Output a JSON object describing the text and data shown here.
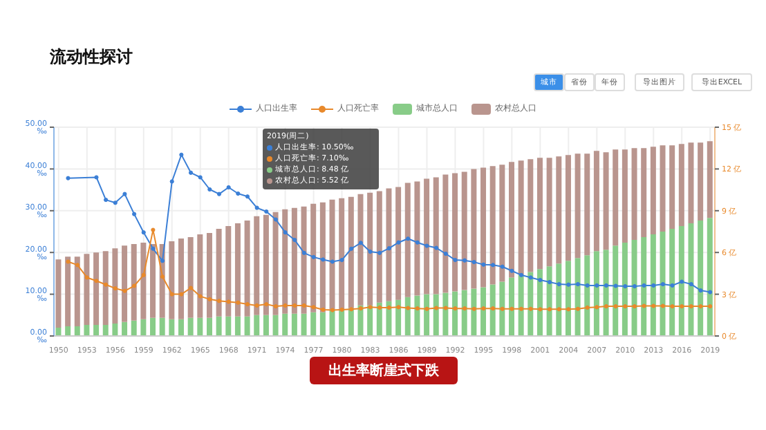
{
  "chart_data": {
    "type": "bar",
    "title": "流动性探讨",
    "stacked": true,
    "legend": "top",
    "grid": true,
    "marker": "circle",
    "categories": [
      "1950",
      null,
      null,
      "1953",
      null,
      null,
      "1956",
      null,
      null,
      "1959",
      null,
      null,
      "1962",
      null,
      null,
      "1965",
      null,
      null,
      "1968",
      null,
      null,
      "1971",
      null,
      null,
      "1974",
      null,
      null,
      "1977",
      null,
      null,
      "1980",
      null,
      null,
      "1983",
      null,
      null,
      "1986",
      null,
      null,
      "1989",
      null,
      null,
      "1992",
      null,
      null,
      "1995",
      null,
      null,
      "1998",
      null,
      null,
      "2001",
      null,
      null,
      "2004",
      null,
      null,
      "2007",
      null,
      null,
      "2010",
      null,
      null,
      "2013",
      null,
      null,
      "2016",
      null,
      null,
      "2019"
    ],
    "ylim": [
      0,
      50
    ],
    "yticks": [
      {
        "value": 0,
        "label": "0.00 ‰"
      },
      {
        "value": 10,
        "label": "10.00 ‰"
      },
      {
        "value": 20,
        "label": "20.00 ‰"
      },
      {
        "value": 30,
        "label": "30.00 ‰"
      },
      {
        "value": 40,
        "label": "40.00 ‰"
      },
      {
        "value": 50,
        "label": "50.00 ‰"
      }
    ],
    "y2lim": [
      0,
      15
    ],
    "y2ticks": [
      {
        "value": 0,
        "label": "0 亿"
      },
      {
        "value": 3,
        "label": "3 亿"
      },
      {
        "value": 6,
        "label": "6 亿"
      },
      {
        "value": 9,
        "label": "9 亿"
      },
      {
        "value": 12,
        "label": "12 亿"
      },
      {
        "value": 15,
        "label": "15 亿"
      }
    ],
    "series": [
      {
        "name": "人口出生率",
        "type": "line",
        "color": "#3b7fd6",
        "values": [
          null,
          37.8,
          null,
          null,
          38.0,
          32.6,
          31.9,
          34.0,
          29.2,
          24.8,
          20.9,
          18.0,
          37.0,
          43.4,
          39.1,
          38.0,
          35.1,
          34.0,
          35.6,
          34.1,
          33.4,
          30.7,
          29.8,
          27.9,
          24.8,
          23.0,
          19.9,
          18.9,
          18.3,
          17.8,
          18.2,
          20.9,
          22.3,
          20.2,
          19.9,
          21.0,
          22.4,
          23.3,
          22.4,
          21.6,
          21.1,
          19.7,
          18.2,
          18.1,
          17.7,
          17.1,
          17.0,
          16.6,
          15.6,
          14.6,
          14.0,
          13.4,
          12.9,
          12.4,
          12.3,
          12.4,
          12.1,
          12.1,
          12.1,
          12.0,
          11.9,
          11.9,
          12.1,
          12.1,
          12.4,
          12.1,
          13.0,
          12.4,
          10.9,
          10.5
        ]
      },
      {
        "name": "人口死亡率",
        "type": "line",
        "color": "#e8892b",
        "values": [
          null,
          17.8,
          17.0,
          14.0,
          13.2,
          12.3,
          11.4,
          10.8,
          12.0,
          14.6,
          25.4,
          14.2,
          10.0,
          10.0,
          11.5,
          9.5,
          8.8,
          8.4,
          8.2,
          8.0,
          7.6,
          7.3,
          7.6,
          7.1,
          7.3,
          7.3,
          7.3,
          6.9,
          6.3,
          6.2,
          6.3,
          6.4,
          6.6,
          6.9,
          6.8,
          6.8,
          6.9,
          6.7,
          6.6,
          6.5,
          6.7,
          6.7,
          6.6,
          6.6,
          6.5,
          6.6,
          6.6,
          6.5,
          6.5,
          6.5,
          6.5,
          6.4,
          6.4,
          6.4,
          6.4,
          6.5,
          6.8,
          6.9,
          7.1,
          7.1,
          7.1,
          7.1,
          7.2,
          7.2,
          7.2,
          7.1,
          7.1,
          7.1,
          7.1,
          7.1
        ]
      },
      {
        "name": "城市总人口",
        "type": "bar",
        "axis": "y2",
        "color": "#88cc88",
        "values": [
          0.6,
          0.7,
          0.7,
          0.8,
          0.8,
          0.8,
          0.9,
          1.0,
          1.1,
          1.2,
          1.3,
          1.3,
          1.2,
          1.2,
          1.3,
          1.3,
          1.3,
          1.4,
          1.4,
          1.4,
          1.4,
          1.5,
          1.5,
          1.5,
          1.6,
          1.6,
          1.6,
          1.7,
          1.7,
          1.9,
          1.9,
          2.0,
          2.2,
          2.2,
          2.4,
          2.5,
          2.6,
          2.8,
          2.9,
          3.0,
          3.0,
          3.1,
          3.2,
          3.3,
          3.4,
          3.5,
          3.7,
          3.9,
          4.2,
          4.4,
          4.6,
          4.8,
          5.0,
          5.2,
          5.4,
          5.6,
          5.8,
          6.1,
          6.2,
          6.5,
          6.7,
          6.9,
          7.1,
          7.3,
          7.5,
          7.7,
          7.9,
          8.1,
          8.3,
          8.48
        ]
      },
      {
        "name": "农村总人口",
        "type": "bar",
        "axis": "y2",
        "color": "#b9958e",
        "values": [
          4.9,
          5.0,
          5.0,
          5.1,
          5.2,
          5.3,
          5.4,
          5.5,
          5.5,
          5.5,
          5.3,
          5.3,
          5.6,
          5.8,
          5.8,
          6.0,
          6.1,
          6.3,
          6.5,
          6.7,
          6.9,
          7.1,
          7.2,
          7.4,
          7.5,
          7.6,
          7.7,
          7.8,
          7.9,
          7.9,
          8.0,
          8.0,
          8.0,
          8.1,
          8.0,
          8.1,
          8.1,
          8.2,
          8.2,
          8.3,
          8.4,
          8.5,
          8.5,
          8.5,
          8.6,
          8.6,
          8.5,
          8.4,
          8.3,
          8.2,
          8.1,
          8.0,
          7.8,
          7.7,
          7.6,
          7.5,
          7.3,
          7.2,
          7.0,
          6.9,
          6.7,
          6.6,
          6.4,
          6.3,
          6.2,
          6.0,
          5.9,
          5.8,
          5.6,
          5.52
        ]
      }
    ],
    "annotations": [
      "城市",
      "省份",
      "年份",
      "导出图片",
      "导出EXCEL",
      "2019(周二)",
      "人口出生率: 10.50‰",
      "人口死亡率: 7.10‰",
      "城市总人口: 8.48 亿",
      "农村总人口: 5.52 亿",
      "出生率断崖式下跌"
    ]
  }
}
